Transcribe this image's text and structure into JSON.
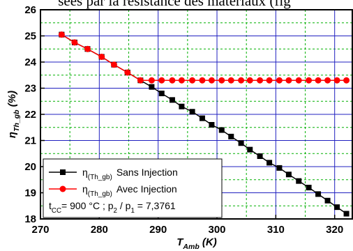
{
  "chart_data": {
    "type": "line",
    "caption_fragment": "sées par la résistance des matériaux (fig",
    "x": [
      273.6,
      275.8,
      278.0,
      280.4,
      282.5,
      284.8,
      287.0,
      288.9,
      290.6,
      292.4,
      294.0,
      295.8,
      297.5,
      299.1,
      300.8,
      302.4,
      304.1,
      305.6,
      307.3,
      308.9,
      310.6,
      312.2,
      313.9,
      315.6,
      317.2,
      318.8,
      320.4,
      322.0
    ],
    "series": [
      {
        "name": "Sans Injection",
        "color": "#000000",
        "marker": "square",
        "values": [
          25.05,
          24.75,
          24.5,
          24.2,
          23.9,
          23.6,
          23.3,
          23.05,
          22.8,
          22.55,
          22.3,
          22.1,
          21.85,
          21.6,
          21.4,
          21.15,
          20.9,
          20.65,
          20.4,
          20.15,
          19.95,
          19.7,
          19.45,
          19.2,
          18.95,
          18.7,
          18.45,
          18.2
        ]
      },
      {
        "name": "Avec Injection",
        "color": "#ff0000",
        "marker": "circle",
        "values": [
          25.05,
          24.75,
          24.5,
          24.2,
          23.9,
          23.6,
          23.3,
          23.3,
          23.3,
          23.3,
          23.3,
          23.3,
          23.3,
          23.3,
          23.3,
          23.3,
          23.3,
          23.3,
          23.3,
          23.3,
          23.3,
          23.3,
          23.3,
          23.3,
          23.3,
          23.3,
          23.3,
          23.3
        ]
      }
    ],
    "legend_symbol": "η",
    "legend_subscript": "(Th_gb)",
    "annotation": [
      {
        "text": "t"
      },
      {
        "text": "CC",
        "sub": true
      },
      {
        "text": "= 900 °C ; p"
      },
      {
        "text": "2",
        "sub": true
      },
      {
        "text": " / p"
      },
      {
        "text": "1",
        "sub": true
      },
      {
        "text": " = 7,3761"
      }
    ],
    "xlabel": [
      {
        "text": "T"
      },
      {
        "text": "Amb",
        "sub": true
      },
      {
        "text": " (K)"
      }
    ],
    "ylabel": [
      {
        "text": "η"
      },
      {
        "text": "Th_gb",
        "sub": true
      },
      {
        "text": " (%)"
      }
    ],
    "xlim": [
      270,
      323
    ],
    "ylim": [
      18,
      26
    ],
    "xticks": [
      270,
      280,
      290,
      300,
      310,
      320
    ],
    "yticks": [
      18,
      19,
      20,
      21,
      22,
      23,
      24,
      25,
      26
    ],
    "xminorticks": [
      275,
      285,
      295,
      305,
      315
    ],
    "yminorticks": [
      18.5,
      19.5,
      20.5,
      21.5,
      22.5,
      23.5,
      24.5,
      25.5
    ],
    "grid": true,
    "major_grid_color": "#2020c0",
    "minor_grid_color": "#00b000",
    "legend": "lower left"
  }
}
